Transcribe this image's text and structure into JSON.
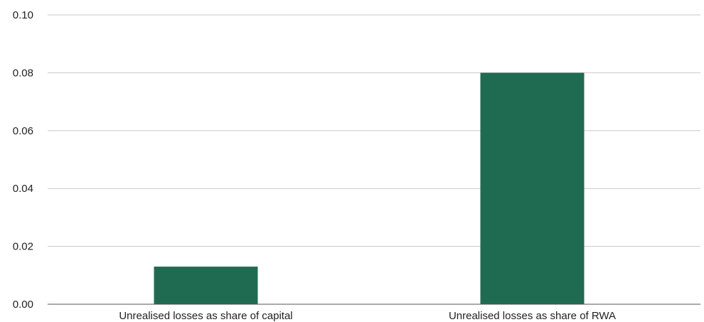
{
  "chart_data": {
    "type": "bar",
    "categories": [
      "Unrealised losses as share of capital",
      "Unrealised losses as share of RWA"
    ],
    "values": [
      0.013,
      0.08
    ],
    "title": "",
    "xlabel": "",
    "ylabel": "",
    "ylim": [
      0,
      0.1
    ],
    "yticks": [
      "0.00",
      "0.02",
      "0.04",
      "0.06",
      "0.08",
      "0.10"
    ],
    "grid": true,
    "legend": "none",
    "bar_color": "#1f6b52"
  }
}
